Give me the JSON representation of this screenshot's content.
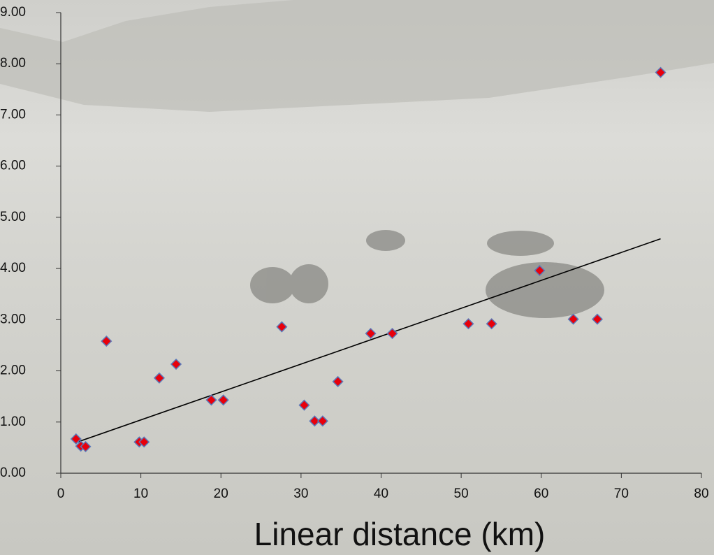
{
  "chart_data": {
    "type": "scatter",
    "x_label": "Linear distance (km)",
    "x": [
      1.9,
      2.5,
      3.1,
      5.7,
      9.8,
      10.4,
      12.3,
      14.4,
      18.8,
      20.3,
      27.6,
      30.4,
      31.7,
      32.7,
      34.6,
      38.7,
      41.4,
      50.9,
      53.8,
      59.8,
      64.0,
      67.0,
      74.9
    ],
    "values": [
      0.67,
      0.53,
      0.52,
      2.58,
      0.61,
      0.61,
      1.86,
      2.13,
      1.43,
      1.43,
      2.86,
      1.33,
      1.02,
      1.02,
      1.79,
      2.73,
      2.73,
      2.92,
      2.92,
      3.96,
      3.01,
      3.01,
      7.83
    ],
    "color": "#e8000b",
    "edge_color": "#5b78b8",
    "trendline": {
      "x": [
        1.9,
        74.9
      ],
      "values": [
        0.6,
        4.58
      ],
      "color": "#000000"
    },
    "xlim": [
      0,
      80
    ],
    "xticks": [
      0,
      10,
      20,
      30,
      40,
      50,
      60,
      70,
      80
    ],
    "ylim": [
      0,
      9
    ],
    "yticks": [
      {
        "value": 0,
        "label": "0.00"
      },
      {
        "value": 1,
        "label": "1.00"
      },
      {
        "value": 2,
        "label": "2.00"
      },
      {
        "value": 3,
        "label": "3.00"
      },
      {
        "value": 4,
        "label": "4.00"
      },
      {
        "value": 5,
        "label": "5.00"
      },
      {
        "value": 6,
        "label": "6.00"
      },
      {
        "value": 7,
        "label": "7.00"
      },
      {
        "value": 8,
        "label": "8.00"
      },
      {
        "value": 9,
        "label": "9.00"
      }
    ]
  }
}
